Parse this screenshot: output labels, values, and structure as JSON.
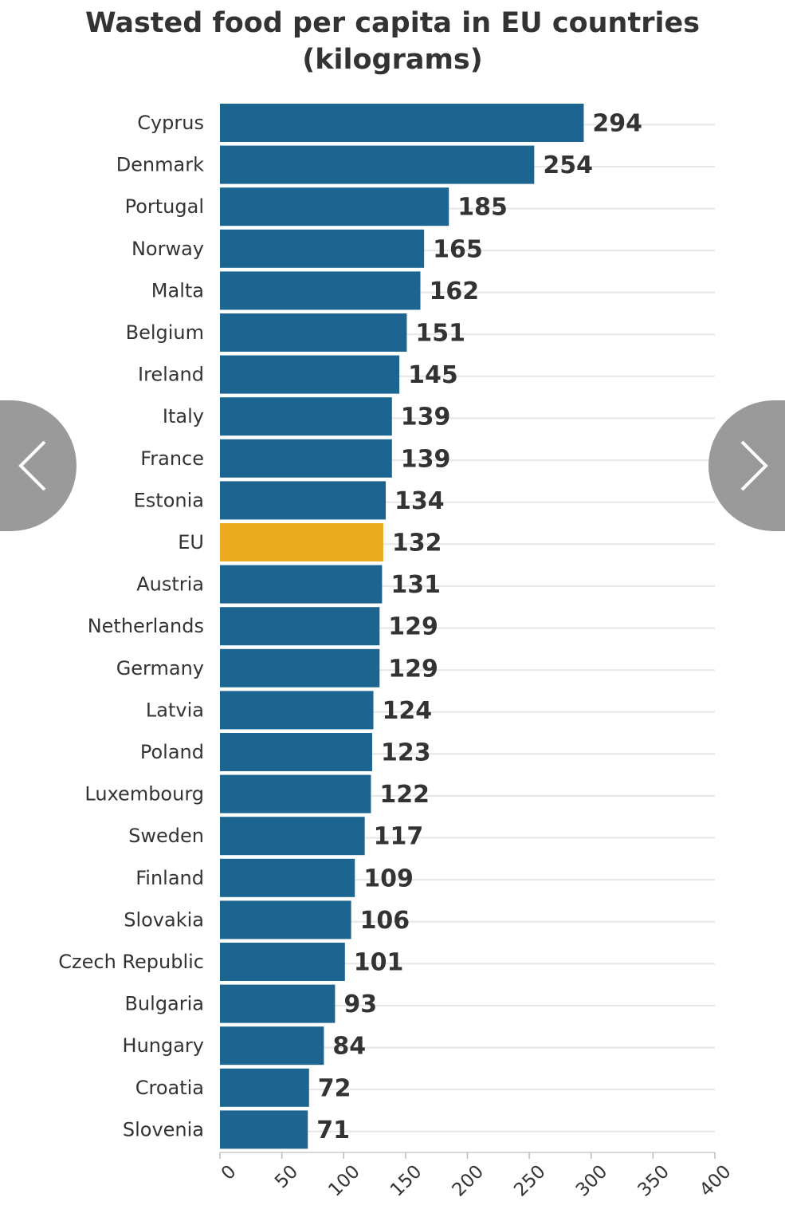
{
  "chart_data": {
    "type": "bar",
    "orientation": "horizontal",
    "title": [
      "Wasted food per capita in EU countries",
      "(kilograms)"
    ],
    "xlabel": "",
    "ylabel": "",
    "xlim": [
      0,
      400
    ],
    "x_ticks": [
      0,
      50,
      100,
      150,
      200,
      250,
      300,
      350,
      400
    ],
    "grid": true,
    "legend": "none",
    "categories": [
      "Cyprus",
      "Denmark",
      "Portugal",
      "Norway",
      "Malta",
      "Belgium",
      "Ireland",
      "Italy",
      "France",
      "Estonia",
      "EU",
      "Austria",
      "Netherlands",
      "Germany",
      "Latvia",
      "Poland",
      "Luxembourg",
      "Sweden",
      "Finland",
      "Slovakia",
      "Czech Republic",
      "Bulgaria",
      "Hungary",
      "Croatia",
      "Slovenia"
    ],
    "values": [
      294,
      254,
      185,
      165,
      162,
      151,
      145,
      139,
      139,
      134,
      132,
      131,
      129,
      129,
      124,
      123,
      122,
      117,
      109,
      106,
      101,
      93,
      84,
      72,
      71
    ],
    "highlight": "EU",
    "colors": {
      "bar": "#1c6591",
      "highlight": "#ecaa1e",
      "label": "#333333",
      "grid": "#e6e6e6"
    }
  },
  "nav": {
    "prev_icon": "chevron-left-icon",
    "next_icon": "chevron-right-icon"
  }
}
